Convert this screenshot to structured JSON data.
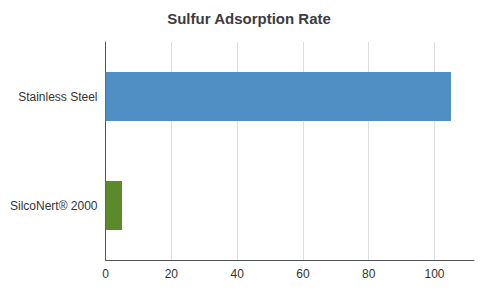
{
  "chart_data": {
    "type": "bar",
    "orientation": "horizontal",
    "title": "Sulfur Adsorption Rate",
    "categories": [
      "SilcoNert® 2000",
      "Stainless Steel"
    ],
    "values": [
      5,
      105
    ],
    "colors": [
      "#5a8a2a",
      "#4f8fc4"
    ],
    "xlim": [
      0,
      112
    ],
    "xticks": [
      0,
      20,
      40,
      60,
      80,
      100
    ],
    "grid": true
  }
}
